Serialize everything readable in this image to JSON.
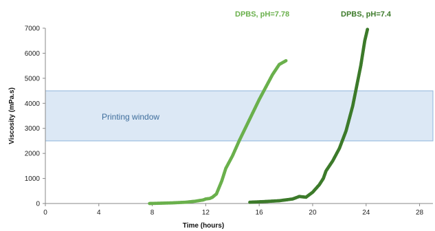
{
  "chart_data": {
    "type": "scatter",
    "title": "",
    "xlabel": "Time (hours)",
    "ylabel": "Viscosity (mPa.s)",
    "xlim": [
      0,
      29
    ],
    "ylim": [
      0,
      7000
    ],
    "x_ticks": [
      0,
      4,
      8,
      12,
      16,
      20,
      24,
      28
    ],
    "y_ticks": [
      0,
      1000,
      2000,
      3000,
      4000,
      5000,
      6000,
      7000
    ],
    "grid": false,
    "legend_position": "top",
    "band": {
      "label": "Printing window",
      "y_range": [
        2500,
        4500
      ],
      "fill": "#dce8f5",
      "stroke": "#8fb5dc",
      "label_color": "#3f6e9c"
    },
    "series": [
      {
        "name": "DPBS, pH=7.78",
        "color": "#6ab04c",
        "points": [
          [
            7.8,
            0
          ],
          [
            8.5,
            10
          ],
          [
            9.5,
            25
          ],
          [
            10.5,
            50
          ],
          [
            11.2,
            90
          ],
          [
            11.8,
            140
          ],
          [
            12.0,
            180
          ],
          [
            12.3,
            200
          ],
          [
            12.5,
            250
          ],
          [
            12.8,
            380
          ],
          [
            13.2,
            900
          ],
          [
            13.5,
            1400
          ],
          [
            14.0,
            1900
          ],
          [
            14.5,
            2500
          ],
          [
            15.0,
            3050
          ],
          [
            15.5,
            3600
          ],
          [
            16.0,
            4150
          ],
          [
            16.5,
            4650
          ],
          [
            17.0,
            5150
          ],
          [
            17.5,
            5550
          ],
          [
            18.0,
            5700
          ]
        ]
      },
      {
        "name": "DPBS, pH=7.4",
        "color": "#3c7a2a",
        "points": [
          [
            15.3,
            50
          ],
          [
            16.5,
            80
          ],
          [
            17.5,
            110
          ],
          [
            18.5,
            180
          ],
          [
            19.0,
            280
          ],
          [
            19.5,
            250
          ],
          [
            20.0,
            450
          ],
          [
            20.5,
            750
          ],
          [
            20.8,
            1000
          ],
          [
            21.0,
            1300
          ],
          [
            21.5,
            1700
          ],
          [
            22.0,
            2200
          ],
          [
            22.5,
            2900
          ],
          [
            23.0,
            3900
          ],
          [
            23.3,
            4700
          ],
          [
            23.6,
            5500
          ],
          [
            23.9,
            6500
          ],
          [
            24.1,
            6950
          ]
        ]
      }
    ]
  }
}
